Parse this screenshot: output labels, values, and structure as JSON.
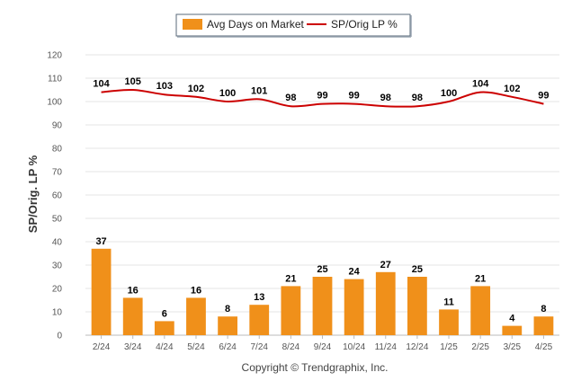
{
  "chart_data": {
    "type": "bar",
    "categories": [
      "2/24",
      "3/24",
      "4/24",
      "5/24",
      "6/24",
      "7/24",
      "8/24",
      "9/24",
      "10/24",
      "11/24",
      "12/24",
      "1/25",
      "2/25",
      "3/25",
      "4/25"
    ],
    "series": [
      {
        "name": "Avg Days on Market",
        "type": "bar",
        "color": "#f0901a",
        "values": [
          37,
          16,
          6,
          16,
          8,
          13,
          21,
          25,
          24,
          27,
          25,
          11,
          21,
          4,
          8
        ]
      },
      {
        "name": "SP/Orig LP %",
        "type": "line",
        "color": "#cc0000",
        "values": [
          104,
          105,
          103,
          102,
          100,
          101,
          98,
          99,
          99,
          98,
          98,
          100,
          104,
          102,
          99
        ]
      }
    ],
    "ylabel": "SP/Orig. LP %",
    "ylim": [
      0,
      120
    ],
    "yticks": [
      0,
      10,
      20,
      30,
      40,
      50,
      60,
      70,
      80,
      90,
      100,
      110,
      120
    ],
    "grid": true,
    "legend_position": "top-center"
  },
  "footer": {
    "copyright": "Copyright © Trendgraphix, Inc."
  }
}
